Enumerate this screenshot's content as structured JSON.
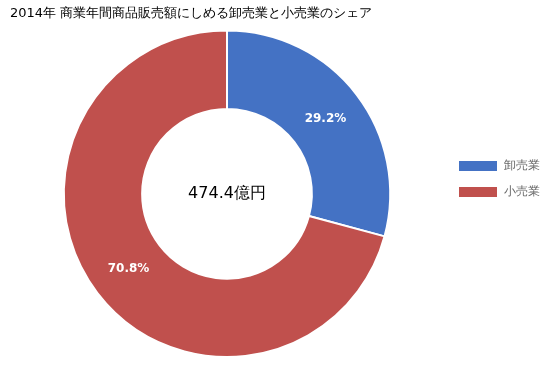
{
  "chart_data": {
    "type": "doughnut",
    "title": "2014年 商業年間商品販売額にしめる卸売業と小売業のシェア",
    "categories": [
      "卸売業",
      "小売業"
    ],
    "values": [
      29.2,
      70.8
    ],
    "value_labels": [
      "29.2%",
      "70.8%"
    ],
    "data_labels": true,
    "colors": [
      "#4472C4",
      "#C0504D"
    ],
    "annotations": [
      "474.4億円"
    ],
    "legend": "right"
  }
}
